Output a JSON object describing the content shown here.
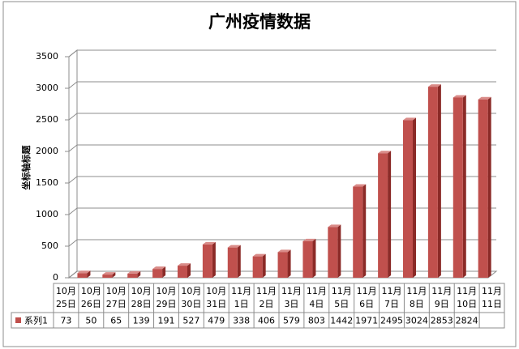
{
  "chart_data": {
    "type": "bar3d",
    "title": "广州疫情数据",
    "y_label": "坐标轴标题",
    "categories": [
      "10月25日",
      "10月26日",
      "10月27日",
      "10月28日",
      "10月29日",
      "10月30日",
      "10月31日",
      "11月1日",
      "11月2日",
      "11月3日",
      "11月4日",
      "11月5日",
      "11月6日",
      "11月7日",
      "11月8日",
      "11月9日",
      "11月10日",
      "11月11日"
    ],
    "series": [
      {
        "name": "系列1",
        "color": "#c0504d",
        "values": [
          73,
          50,
          65,
          139,
          191,
          527,
          479,
          338,
          406,
          579,
          803,
          1442,
          1971,
          2495,
          3024,
          2853,
          2824,
          null
        ]
      }
    ],
    "ylim": [
      0,
      3500
    ],
    "yticks": [
      0,
      500,
      1000,
      1500,
      2000,
      2500,
      3000,
      3500
    ],
    "grid": true,
    "data_table": true
  }
}
